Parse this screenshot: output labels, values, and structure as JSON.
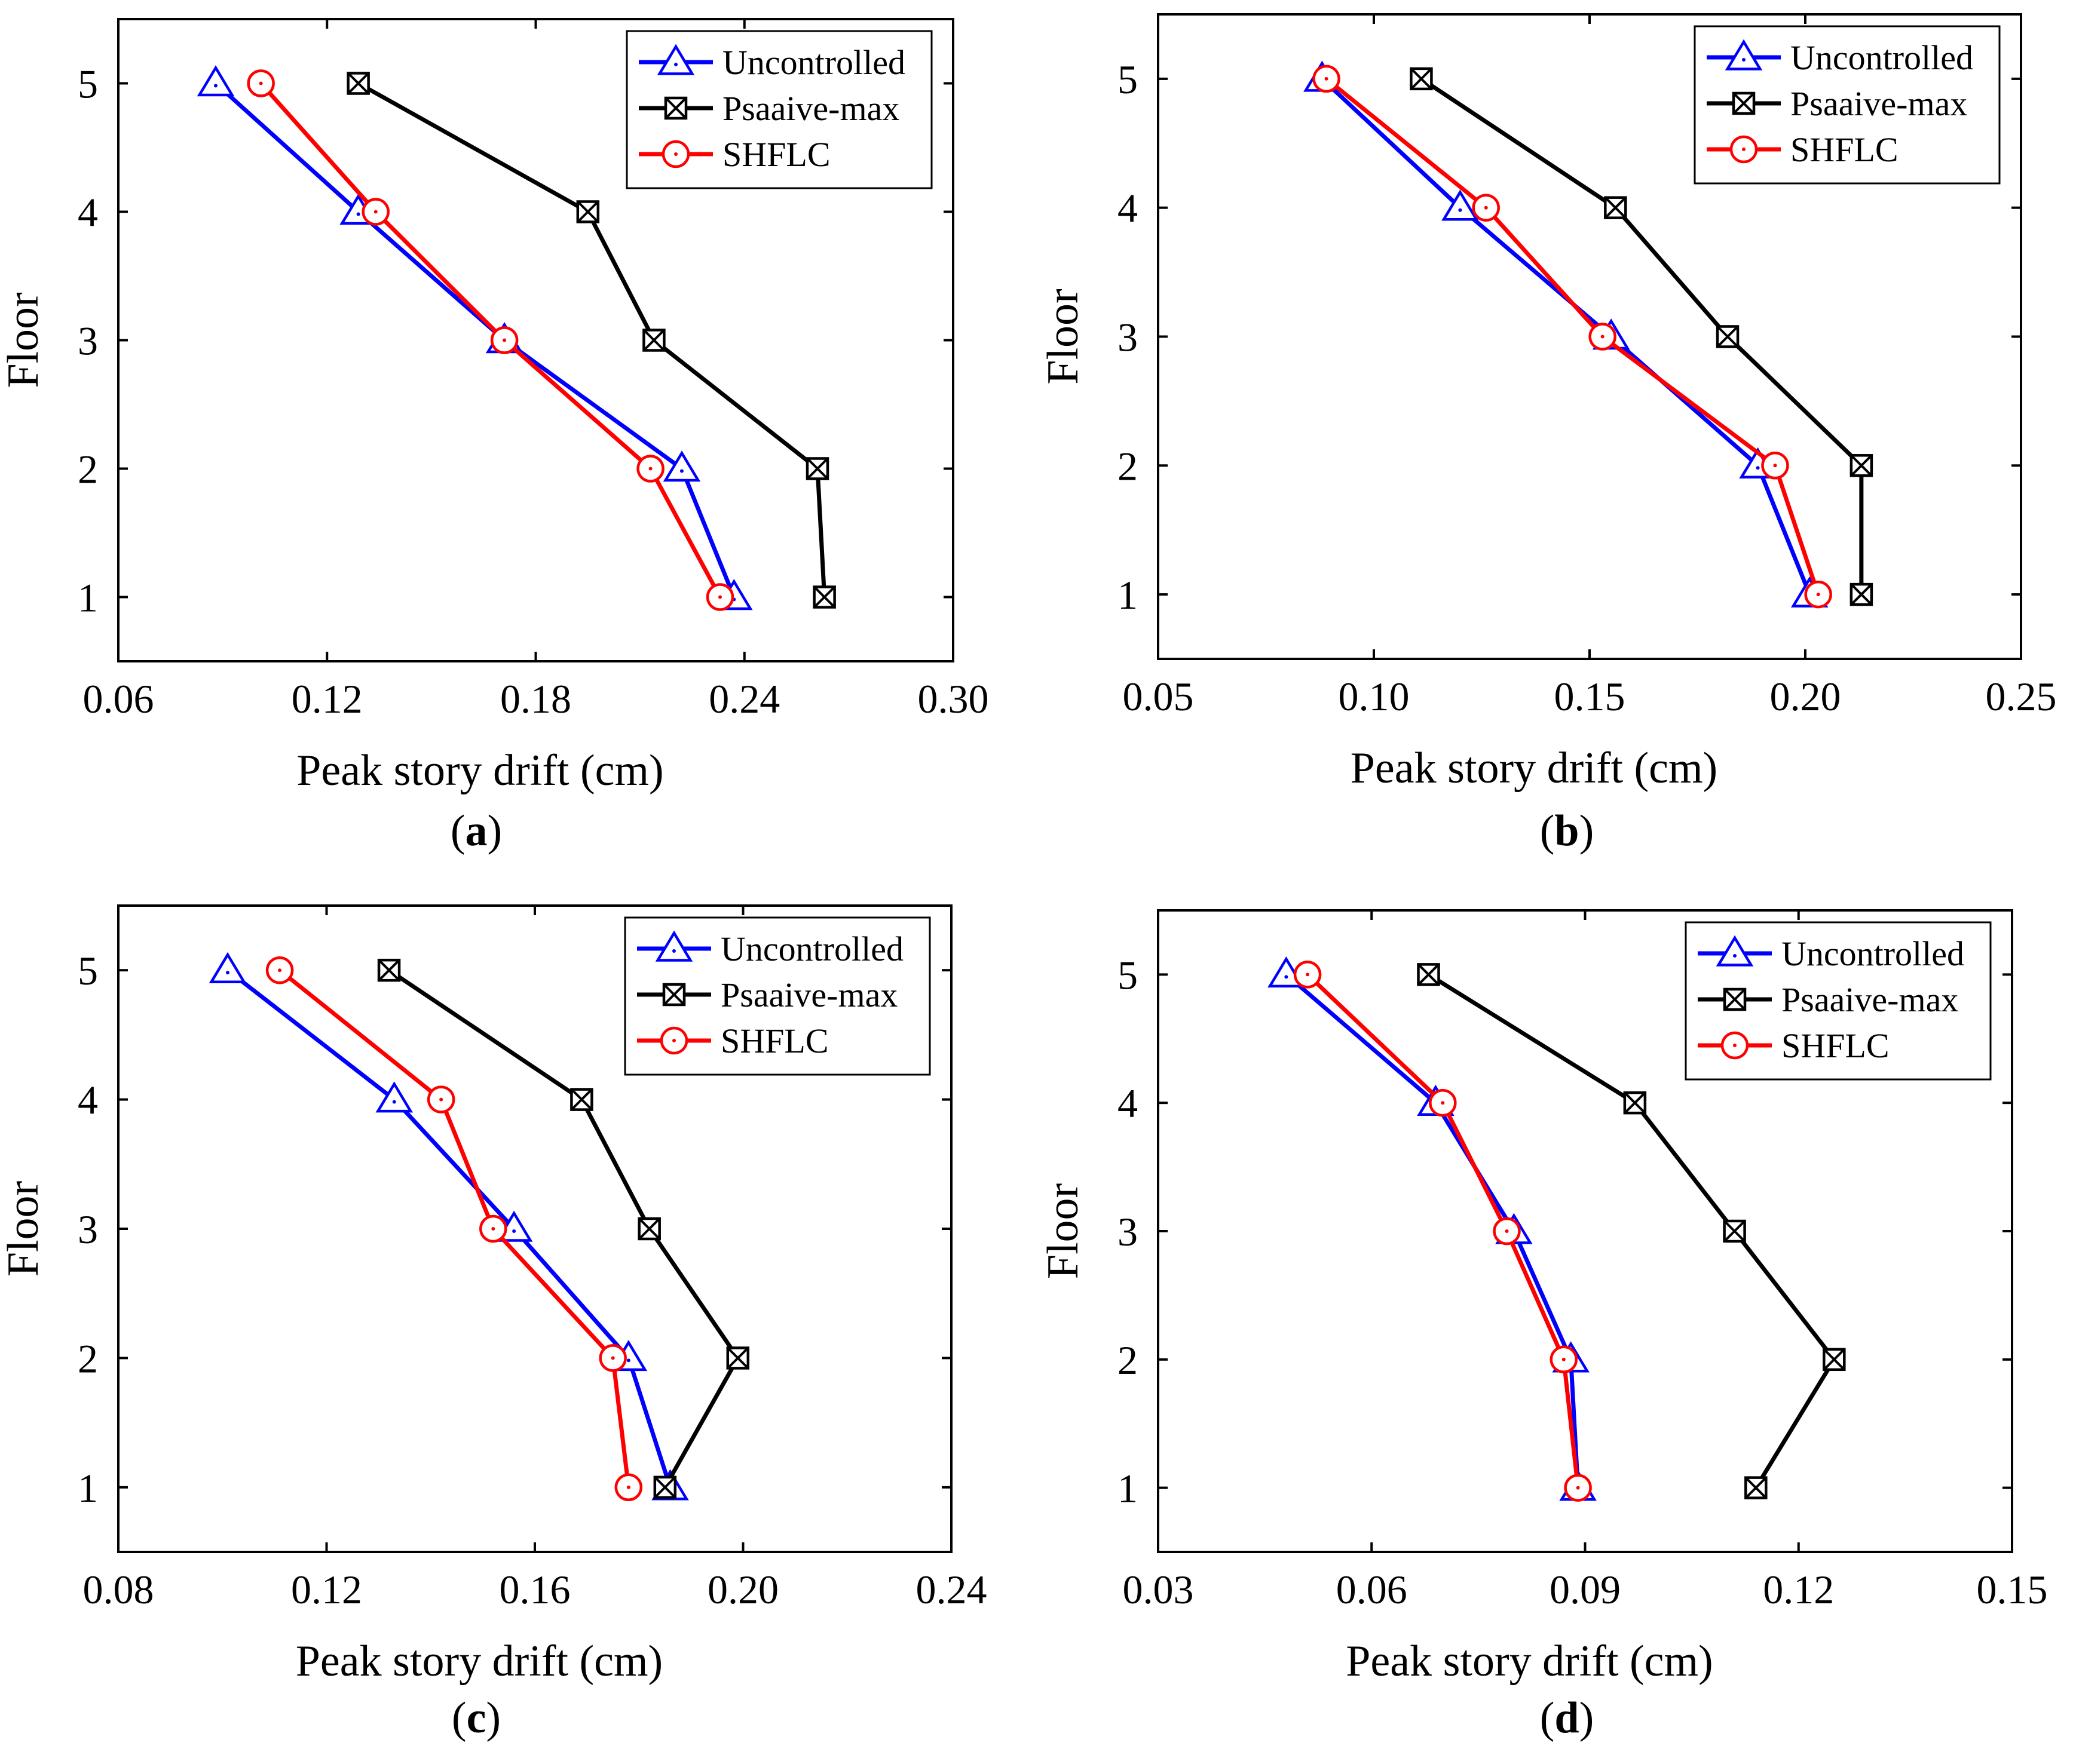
{
  "chart_data": [
    {
      "type": "line",
      "caption": "a",
      "xlabel": "Peak story drift (cm)",
      "ylabel": "Floor",
      "xlim": [
        0.06,
        0.3
      ],
      "ylim": [
        0.5,
        5.5
      ],
      "xticks": [
        "0.06",
        "0.12",
        "0.18",
        "0.24",
        "0.30"
      ],
      "yticks": [
        "1",
        "2",
        "3",
        "4",
        "5"
      ],
      "legend": "top-right",
      "series": [
        {
          "name": "Uncontrolled",
          "color": "#0000ff",
          "marker": "triangle",
          "x": [
            0.237,
            0.222,
            0.171,
            0.129,
            0.088
          ],
          "y": [
            1,
            2,
            3,
            4,
            5
          ]
        },
        {
          "name": "Psaaive-max",
          "color": "#000000",
          "marker": "boxed-x",
          "x": [
            0.263,
            0.261,
            0.214,
            0.195,
            0.129
          ],
          "y": [
            1,
            2,
            3,
            4,
            5
          ]
        },
        {
          "name": "SHFLC",
          "color": "#ff0000",
          "marker": "circle",
          "x": [
            0.233,
            0.213,
            0.171,
            0.134,
            0.101
          ],
          "y": [
            1,
            2,
            3,
            4,
            5
          ]
        }
      ]
    },
    {
      "type": "line",
      "caption": "b",
      "xlabel": "Peak story drift (cm)",
      "ylabel": "Floor",
      "xlim": [
        0.05,
        0.25
      ],
      "ylim": [
        0.5,
        5.5
      ],
      "xticks": [
        "0.05",
        "0.10",
        "0.15",
        "0.20",
        "0.25"
      ],
      "yticks": [
        "1",
        "2",
        "3",
        "4",
        "5"
      ],
      "legend": "top-right",
      "series": [
        {
          "name": "Uncontrolled",
          "color": "#0000ff",
          "marker": "triangle",
          "x": [
            0.201,
            0.189,
            0.155,
            0.12,
            0.088
          ],
          "y": [
            1,
            2,
            3,
            4,
            5
          ]
        },
        {
          "name": "Psaaive-max",
          "color": "#000000",
          "marker": "boxed-x",
          "x": [
            0.213,
            0.213,
            0.182,
            0.156,
            0.111
          ],
          "y": [
            1,
            2,
            3,
            4,
            5
          ]
        },
        {
          "name": "SHFLC",
          "color": "#ff0000",
          "marker": "circle",
          "x": [
            0.203,
            0.193,
            0.153,
            0.126,
            0.089
          ],
          "y": [
            1,
            2,
            3,
            4,
            5
          ]
        }
      ]
    },
    {
      "type": "line",
      "caption": "c",
      "xlabel": "Peak story drift (cm)",
      "ylabel": "Floor",
      "xlim": [
        0.08,
        0.24
      ],
      "ylim": [
        0.5,
        5.5
      ],
      "xticks": [
        "0.08",
        "0.12",
        "0.16",
        "0.20",
        "0.24"
      ],
      "yticks": [
        "1",
        "2",
        "3",
        "4",
        "5"
      ],
      "legend": "top-right",
      "series": [
        {
          "name": "Uncontrolled",
          "color": "#0000ff",
          "marker": "triangle",
          "x": [
            0.186,
            0.178,
            0.156,
            0.133,
            0.101
          ],
          "y": [
            1,
            2,
            3,
            4,
            5
          ]
        },
        {
          "name": "Psaaive-max",
          "color": "#000000",
          "marker": "boxed-x",
          "x": [
            0.185,
            0.199,
            0.182,
            0.169,
            0.132
          ],
          "y": [
            1,
            2,
            3,
            4,
            5
          ]
        },
        {
          "name": "SHFLC",
          "color": "#ff0000",
          "marker": "circle",
          "x": [
            0.178,
            0.175,
            0.152,
            0.142,
            0.111
          ],
          "y": [
            1,
            2,
            3,
            4,
            5
          ]
        }
      ]
    },
    {
      "type": "line",
      "caption": "d",
      "xlabel": "Peak story drift (cm)",
      "ylabel": "Floor",
      "xlim": [
        0.03,
        0.15
      ],
      "ylim": [
        0.5,
        5.5
      ],
      "xticks": [
        "0.03",
        "0.06",
        "0.09",
        "0.12",
        "0.15"
      ],
      "yticks": [
        "1",
        "2",
        "3",
        "4",
        "5"
      ],
      "legend": "top-right",
      "series": [
        {
          "name": "Uncontrolled",
          "color": "#0000ff",
          "marker": "triangle",
          "x": [
            0.089,
            0.088,
            0.08,
            0.069,
            0.048
          ],
          "y": [
            1,
            2,
            3,
            4,
            5
          ]
        },
        {
          "name": "Psaaive-max",
          "color": "#000000",
          "marker": "boxed-x",
          "x": [
            0.114,
            0.125,
            0.111,
            0.097,
            0.068
          ],
          "y": [
            1,
            2,
            3,
            4,
            5
          ]
        },
        {
          "name": "SHFLC",
          "color": "#ff0000",
          "marker": "circle",
          "x": [
            0.089,
            0.087,
            0.079,
            0.07,
            0.051
          ],
          "y": [
            1,
            2,
            3,
            4,
            5
          ]
        }
      ]
    }
  ]
}
